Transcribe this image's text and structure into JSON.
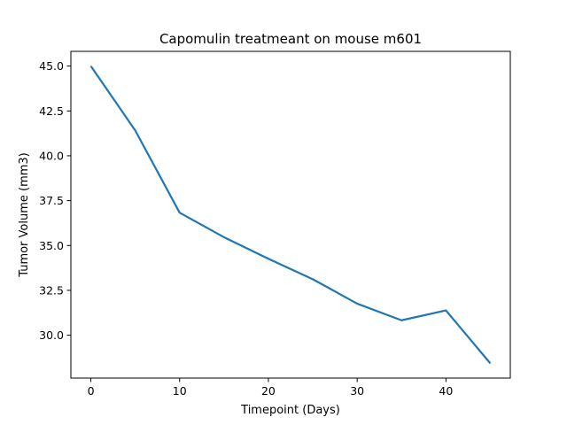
{
  "chart_data": {
    "type": "line",
    "title": "Capomulin treatmeant on mouse m601",
    "xlabel": "Timepoint (Days)",
    "ylabel": "Tumor Volume (mm3)",
    "xlim": [
      -2.25,
      47.25
    ],
    "ylim": [
      27.61,
      45.82
    ],
    "xticks": [
      0,
      10,
      20,
      30,
      40
    ],
    "yticks": [
      30.0,
      32.5,
      35.0,
      37.5,
      40.0,
      42.5,
      45.0
    ],
    "xtick_labels": [
      "0",
      "10",
      "20",
      "30",
      "40"
    ],
    "ytick_labels": [
      "30.0",
      "32.5",
      "35.0",
      "37.5",
      "40.0",
      "42.5",
      "45.0"
    ],
    "grid": false,
    "series": [
      {
        "color": "#1f77b4",
        "x": [
          0,
          5,
          10,
          15,
          20,
          25,
          30,
          35,
          40,
          45
        ],
        "y": [
          45.0,
          41.41,
          36.83,
          35.46,
          34.26,
          33.12,
          31.76,
          30.83,
          31.38,
          28.43
        ]
      }
    ]
  }
}
